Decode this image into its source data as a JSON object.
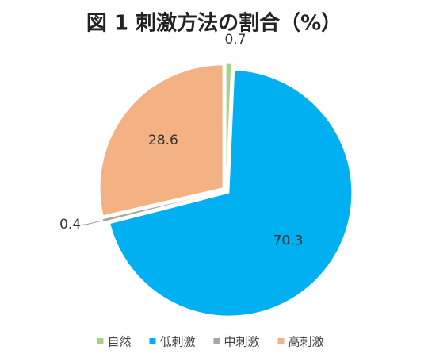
{
  "chart_data": {
    "type": "pie",
    "title": "図 1 刺激方法の割合（%）",
    "categories": [
      "自然",
      "低刺激",
      "中刺激",
      "高刺激"
    ],
    "values": [
      0.7,
      70.3,
      0.4,
      28.6
    ],
    "colors": [
      "#a9d18e",
      "#00b0f0",
      "#a5a5a5",
      "#f4b183"
    ],
    "legend": "bottom"
  }
}
